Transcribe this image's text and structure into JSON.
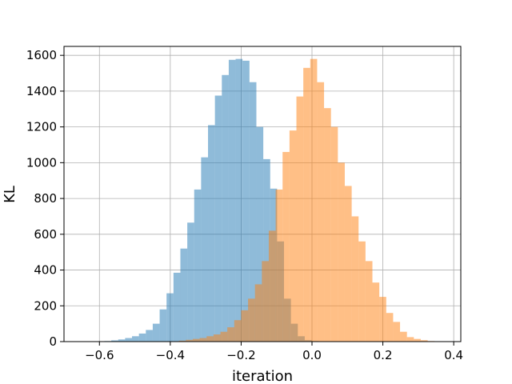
{
  "chart_data": {
    "type": "histogram",
    "title": "",
    "xlabel": "iteration",
    "ylabel": "KL",
    "xlim": [
      -0.7,
      0.42
    ],
    "ylim": [
      0,
      1650
    ],
    "grid": true,
    "xticks": [
      -0.6,
      -0.4,
      -0.2,
      0.0,
      0.2,
      0.4
    ],
    "xtick_labels": [
      "−0.6",
      "−0.4",
      "−0.2",
      "0.0",
      "0.2",
      "0.4"
    ],
    "yticks": [
      0,
      200,
      400,
      600,
      800,
      1000,
      1200,
      1400,
      1600
    ],
    "ytick_labels": [
      "0",
      "200",
      "400",
      "600",
      "800",
      "1000",
      "1200",
      "1400",
      "1600"
    ],
    "series": [
      {
        "color": "#1f77b4",
        "opacity": 0.5,
        "bin_edges": [
          -0.625,
          -0.6055,
          -0.586,
          -0.5665,
          -0.547,
          -0.5275,
          -0.508,
          -0.4885,
          -0.469,
          -0.4495,
          -0.43,
          -0.4105,
          -0.391,
          -0.3715,
          -0.352,
          -0.3325,
          -0.313,
          -0.2935,
          -0.274,
          -0.2545,
          -0.235,
          -0.2155,
          -0.196,
          -0.1765,
          -0.157,
          -0.1375,
          -0.118,
          -0.0985,
          -0.079,
          -0.0595,
          -0.04,
          -0.0205,
          -0.001,
          0.0185,
          0.038
        ],
        "counts": [
          1,
          2,
          3,
          7,
          12,
          20,
          30,
          45,
          65,
          100,
          180,
          270,
          385,
          520,
          665,
          850,
          1030,
          1210,
          1375,
          1490,
          1575,
          1580,
          1570,
          1450,
          1200,
          1020,
          855,
          560,
          240,
          100,
          30,
          8,
          3,
          1
        ]
      },
      {
        "color": "#ff7f0e",
        "opacity": 0.5,
        "bin_edges": [
          -0.395,
          -0.3755,
          -0.356,
          -0.3365,
          -0.317,
          -0.2975,
          -0.278,
          -0.2585,
          -0.239,
          -0.2195,
          -0.2,
          -0.1805,
          -0.161,
          -0.1415,
          -0.122,
          -0.1025,
          -0.083,
          -0.0635,
          -0.044,
          -0.0245,
          -0.005,
          0.0145,
          0.034,
          0.0535,
          0.073,
          0.0925,
          0.112,
          0.1315,
          0.151,
          0.1705,
          0.19,
          0.2095,
          0.229,
          0.2485,
          0.268,
          0.2875,
          0.307,
          0.3265,
          0.346,
          0.3655
        ],
        "counts": [
          2,
          5,
          10,
          15,
          20,
          30,
          40,
          55,
          80,
          120,
          175,
          240,
          320,
          450,
          620,
          850,
          1060,
          1180,
          1370,
          1530,
          1580,
          1450,
          1305,
          1200,
          1000,
          870,
          700,
          560,
          450,
          330,
          250,
          160,
          110,
          55,
          25,
          15,
          8,
          3,
          1
        ]
      }
    ]
  }
}
